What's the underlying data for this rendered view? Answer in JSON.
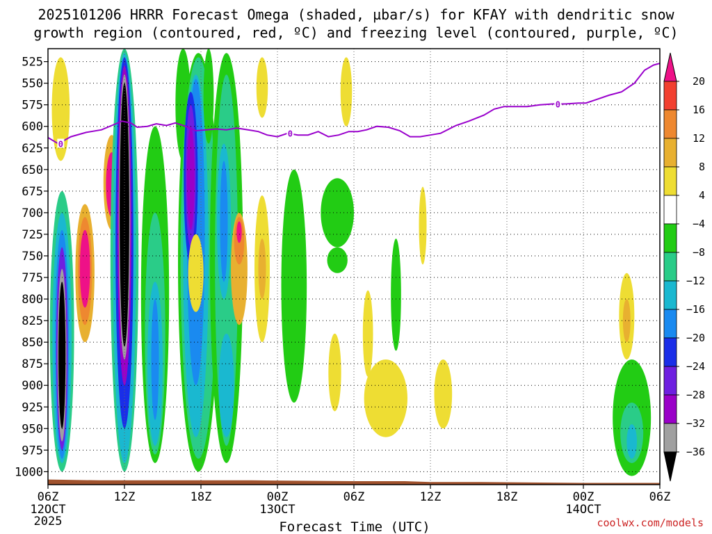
{
  "chart_data": {
    "type": "heatmap",
    "title_line1": "2025101206 HRRR Forecast Omega (shaded, µbar/s) for KFAY with dendritic snow",
    "title_line2": "growth region (contoured, red, ºC) and freezing level (contoured, purple, ºC)",
    "xlabel": "Forecast Time (UTC)",
    "credit": "coolwx.com/models",
    "y_axis": {
      "unit": "hPa",
      "range": [
        1015,
        510
      ],
      "ticks": [
        525,
        550,
        575,
        600,
        625,
        650,
        675,
        700,
        725,
        750,
        775,
        800,
        825,
        850,
        875,
        900,
        925,
        950,
        975,
        1000
      ]
    },
    "x_axis": {
      "range_hours": [
        0,
        48
      ],
      "ticks": [
        {
          "hour": 0,
          "label": "06Z",
          "sub": "12OCT",
          "sub2": "2025"
        },
        {
          "hour": 6,
          "label": "12Z",
          "sub": "",
          "sub2": ""
        },
        {
          "hour": 12,
          "label": "18Z",
          "sub": "",
          "sub2": ""
        },
        {
          "hour": 18,
          "label": "00Z",
          "sub": "13OCT",
          "sub2": ""
        },
        {
          "hour": 24,
          "label": "06Z",
          "sub": "",
          "sub2": ""
        },
        {
          "hour": 30,
          "label": "12Z",
          "sub": "",
          "sub2": ""
        },
        {
          "hour": 36,
          "label": "18Z",
          "sub": "",
          "sub2": ""
        },
        {
          "hour": 42,
          "label": "00Z",
          "sub": "14OCT",
          "sub2": ""
        },
        {
          "hour": 48,
          "label": "06Z",
          "sub": "",
          "sub2": ""
        }
      ]
    },
    "colorbar": {
      "levels": [
        {
          "min": -40,
          "max": -36,
          "color": "#000000"
        },
        {
          "min": -36,
          "max": -32,
          "color": "#a0a0a0"
        },
        {
          "min": -32,
          "max": -28,
          "color": "#9a00c8"
        },
        {
          "min": -28,
          "max": -24,
          "color": "#6e1fe0"
        },
        {
          "min": -24,
          "max": -20,
          "color": "#1a2ee8"
        },
        {
          "min": -20,
          "max": -16,
          "color": "#1a8af0"
        },
        {
          "min": -16,
          "max": -12,
          "color": "#1ab8d0"
        },
        {
          "min": -12,
          "max": -8,
          "color": "#2acc88"
        },
        {
          "min": -8,
          "max": -4,
          "color": "#22cc14"
        },
        {
          "min": -4,
          "max": 4,
          "color": "#ffffff"
        },
        {
          "min": 4,
          "max": 8,
          "color": "#eedd33"
        },
        {
          "min": 8,
          "max": 12,
          "color": "#e8b030"
        },
        {
          "min": 12,
          "max": 16,
          "color": "#ee8830"
        },
        {
          "min": 16,
          "max": 20,
          "color": "#f24030"
        },
        {
          "min": 20,
          "max": 24,
          "color": "#ee1188"
        }
      ],
      "tick_labels": [
        "20",
        "16",
        "12",
        "8",
        "4",
        "−4",
        "−8",
        "−12",
        "−16",
        "−20",
        "−24",
        "−28",
        "−32",
        "−36"
      ]
    },
    "freezing_level": {
      "contour_label": "0",
      "color": "#9900cc",
      "points": [
        [
          0,
          613
        ],
        [
          0.8,
          620
        ],
        [
          1.8,
          612
        ],
        [
          3,
          607
        ],
        [
          4.2,
          604
        ],
        [
          5,
          599
        ],
        [
          5.8,
          594
        ],
        [
          6.5,
          596
        ],
        [
          7,
          601
        ],
        [
          7.8,
          600
        ],
        [
          8.5,
          597
        ],
        [
          9.3,
          599
        ],
        [
          10,
          596
        ],
        [
          10.8,
          600
        ],
        [
          11.6,
          605
        ],
        [
          12.4,
          604
        ],
        [
          13.2,
          603
        ],
        [
          14,
          604
        ],
        [
          14.8,
          602
        ],
        [
          15.7,
          604
        ],
        [
          16.5,
          606
        ],
        [
          17.2,
          610
        ],
        [
          18,
          612
        ],
        [
          18.8,
          608
        ],
        [
          19.6,
          610
        ],
        [
          20.4,
          610
        ],
        [
          21.2,
          606
        ],
        [
          22,
          612
        ],
        [
          22.8,
          610
        ],
        [
          23.6,
          606
        ],
        [
          24.3,
          606
        ],
        [
          25,
          604
        ],
        [
          25.8,
          600
        ],
        [
          26.7,
          601
        ],
        [
          27.6,
          605
        ],
        [
          28.4,
          612
        ],
        [
          29.2,
          612
        ],
        [
          30,
          610
        ],
        [
          30.8,
          608
        ],
        [
          32,
          599
        ],
        [
          33,
          594
        ],
        [
          34.2,
          587
        ],
        [
          35,
          580
        ],
        [
          35.8,
          577
        ],
        [
          36.8,
          577
        ],
        [
          37.6,
          577
        ],
        [
          38.6,
          575
        ],
        [
          39.6,
          574
        ],
        [
          40.6,
          574
        ],
        [
          41.6,
          573
        ],
        [
          42.2,
          573
        ],
        [
          43,
          569
        ],
        [
          44,
          564
        ],
        [
          45,
          560
        ],
        [
          46,
          550
        ],
        [
          46.8,
          535
        ],
        [
          47.5,
          529
        ],
        [
          48,
          527
        ]
      ],
      "labels_at_hours": [
        1,
        19,
        40
      ]
    },
    "ground_pressure": [
      [
        0,
        1009
      ],
      [
        4,
        1010
      ],
      [
        8,
        1010
      ],
      [
        12,
        1010
      ],
      [
        16,
        1010
      ],
      [
        24,
        1011
      ],
      [
        28,
        1011
      ],
      [
        30,
        1012
      ],
      [
        34,
        1012
      ],
      [
        42,
        1013
      ],
      [
        48,
        1013
      ]
    ],
    "ground_color": "#a0522d",
    "omega_features": [
      {
        "hour": 1.0,
        "p_top": 520,
        "p_bot": 640,
        "width_h": 1.4,
        "value": 6
      },
      {
        "hour": 1.1,
        "p_top": 675,
        "p_bot": 1000,
        "width_h": 1.9,
        "value": -10
      },
      {
        "hour": 1.1,
        "p_top": 700,
        "p_bot": 990,
        "width_h": 1.5,
        "value": -14
      },
      {
        "hour": 1.1,
        "p_top": 720,
        "p_bot": 985,
        "width_h": 1.1,
        "value": -18
      },
      {
        "hour": 1.1,
        "p_top": 740,
        "p_bot": 975,
        "width_h": 0.9,
        "value": -28
      },
      {
        "hour": 1.1,
        "p_top": 765,
        "p_bot": 965,
        "width_h": 0.7,
        "value": -33
      },
      {
        "hour": 1.1,
        "p_top": 780,
        "p_bot": 950,
        "width_h": 0.55,
        "value": -38
      },
      {
        "hour": 2.9,
        "p_top": 690,
        "p_bot": 850,
        "width_h": 1.5,
        "value": 10
      },
      {
        "hour": 2.9,
        "p_top": 705,
        "p_bot": 830,
        "width_h": 1.1,
        "value": 14
      },
      {
        "hour": 2.9,
        "p_top": 720,
        "p_bot": 810,
        "width_h": 0.8,
        "value": 22
      },
      {
        "hour": 5.0,
        "p_top": 610,
        "p_bot": 720,
        "width_h": 1.3,
        "value": 10
      },
      {
        "hour": 5.0,
        "p_top": 630,
        "p_bot": 705,
        "width_h": 0.9,
        "value": 22
      },
      {
        "hour": 6.0,
        "p_top": 510,
        "p_bot": 1000,
        "width_h": 2.2,
        "value": -10
      },
      {
        "hour": 6.0,
        "p_top": 515,
        "p_bot": 990,
        "width_h": 1.8,
        "value": -14
      },
      {
        "hour": 6.0,
        "p_top": 520,
        "p_bot": 950,
        "width_h": 1.4,
        "value": -22
      },
      {
        "hour": 6.0,
        "p_top": 530,
        "p_bot": 900,
        "width_h": 1.1,
        "value": -30
      },
      {
        "hour": 6.0,
        "p_top": 540,
        "p_bot": 870,
        "width_h": 0.9,
        "value": -34
      },
      {
        "hour": 6.0,
        "p_top": 550,
        "p_bot": 855,
        "width_h": 0.75,
        "value": -38
      },
      {
        "hour": 8.4,
        "p_top": 600,
        "p_bot": 990,
        "width_h": 2.2,
        "value": -6
      },
      {
        "hour": 8.4,
        "p_top": 700,
        "p_bot": 980,
        "width_h": 1.6,
        "value": -10
      },
      {
        "hour": 8.4,
        "p_top": 780,
        "p_bot": 970,
        "width_h": 1.2,
        "value": -14
      },
      {
        "hour": 8.4,
        "p_top": 800,
        "p_bot": 940,
        "width_h": 0.6,
        "value": -18
      },
      {
        "hour": 10.6,
        "p_top": 510,
        "p_bot": 640,
        "width_h": 1.2,
        "value": -6
      },
      {
        "hour": 11.8,
        "p_top": 515,
        "p_bot": 1000,
        "width_h": 3.2,
        "value": -6
      },
      {
        "hour": 11.8,
        "p_top": 520,
        "p_bot": 985,
        "width_h": 2.8,
        "value": -10
      },
      {
        "hour": 11.6,
        "p_top": 540,
        "p_bot": 960,
        "width_h": 2.0,
        "value": -14
      },
      {
        "hour": 11.6,
        "p_top": 545,
        "p_bot": 900,
        "width_h": 1.4,
        "value": -18
      },
      {
        "hour": 11.2,
        "p_top": 560,
        "p_bot": 760,
        "width_h": 1.1,
        "value": -22
      },
      {
        "hour": 11.2,
        "p_top": 575,
        "p_bot": 740,
        "width_h": 0.8,
        "value": -26
      },
      {
        "hour": 11.2,
        "p_top": 600,
        "p_bot": 720,
        "width_h": 0.6,
        "value": -30
      },
      {
        "hour": 14.0,
        "p_top": 515,
        "p_bot": 990,
        "width_h": 2.6,
        "value": -6
      },
      {
        "hour": 14.0,
        "p_top": 540,
        "p_bot": 970,
        "width_h": 1.8,
        "value": -10
      },
      {
        "hour": 13.8,
        "p_top": 620,
        "p_bot": 800,
        "width_h": 1.1,
        "value": -14
      },
      {
        "hour": 13.8,
        "p_top": 640,
        "p_bot": 780,
        "width_h": 0.6,
        "value": -18
      },
      {
        "hour": 14.0,
        "p_top": 840,
        "p_bot": 960,
        "width_h": 1.2,
        "value": -14
      },
      {
        "hour": 11.6,
        "p_top": 725,
        "p_bot": 815,
        "width_h": 1.2,
        "value": 6
      },
      {
        "hour": 15.0,
        "p_top": 700,
        "p_bot": 830,
        "width_h": 1.3,
        "value": 8
      },
      {
        "hour": 15.0,
        "p_top": 705,
        "p_bot": 760,
        "width_h": 0.8,
        "value": 12
      },
      {
        "hour": 15.0,
        "p_top": 710,
        "p_bot": 735,
        "width_h": 0.4,
        "value": 20
      },
      {
        "hour": 12.6,
        "p_top": 510,
        "p_bot": 620,
        "width_h": 0.8,
        "value": -6
      },
      {
        "hour": 16.8,
        "p_top": 680,
        "p_bot": 850,
        "width_h": 1.2,
        "value": 6
      },
      {
        "hour": 16.8,
        "p_top": 730,
        "p_bot": 800,
        "width_h": 0.6,
        "value": 10
      },
      {
        "hour": 16.8,
        "p_top": 520,
        "p_bot": 590,
        "width_h": 0.9,
        "value": 6
      },
      {
        "hour": 19.3,
        "p_top": 650,
        "p_bot": 920,
        "width_h": 2.0,
        "value": -6
      },
      {
        "hour": 22.7,
        "p_top": 660,
        "p_bot": 740,
        "width_h": 2.6,
        "value": -6
      },
      {
        "hour": 22.7,
        "p_top": 740,
        "p_bot": 770,
        "width_h": 1.6,
        "value": -6
      },
      {
        "hour": 23.4,
        "p_top": 520,
        "p_bot": 600,
        "width_h": 0.9,
        "value": 6
      },
      {
        "hour": 27.3,
        "p_top": 730,
        "p_bot": 860,
        "width_h": 0.8,
        "value": -6
      },
      {
        "hour": 22.5,
        "p_top": 840,
        "p_bot": 930,
        "width_h": 1.0,
        "value": 6
      },
      {
        "hour": 25.1,
        "p_top": 790,
        "p_bot": 890,
        "width_h": 0.8,
        "value": 6
      },
      {
        "hour": 26.5,
        "p_top": 870,
        "p_bot": 960,
        "width_h": 3.4,
        "value": 6
      },
      {
        "hour": 29.4,
        "p_top": 670,
        "p_bot": 760,
        "width_h": 0.6,
        "value": 6
      },
      {
        "hour": 31.0,
        "p_top": 870,
        "p_bot": 950,
        "width_h": 1.4,
        "value": 6
      },
      {
        "hour": 45.4,
        "p_top": 770,
        "p_bot": 870,
        "width_h": 1.2,
        "value": 6
      },
      {
        "hour": 45.4,
        "p_top": 800,
        "p_bot": 850,
        "width_h": 0.6,
        "value": 10
      },
      {
        "hour": 45.8,
        "p_top": 870,
        "p_bot": 1005,
        "width_h": 3.0,
        "value": -6
      },
      {
        "hour": 45.8,
        "p_top": 920,
        "p_bot": 990,
        "width_h": 1.8,
        "value": -10
      },
      {
        "hour": 45.8,
        "p_top": 945,
        "p_bot": 985,
        "width_h": 0.8,
        "value": -14
      }
    ]
  }
}
